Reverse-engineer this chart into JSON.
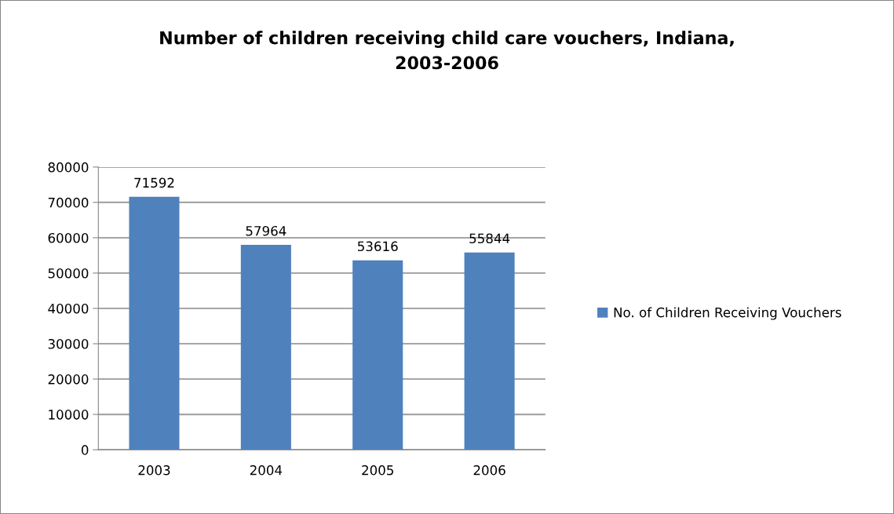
{
  "chart_data": {
    "type": "bar",
    "title": "Number of children receiving child care vouchers, Indiana,\n2003-2006",
    "categories": [
      "2003",
      "2004",
      "2005",
      "2006"
    ],
    "series": [
      {
        "name": "No. of Children Receiving Vouchers",
        "color": "#4f81bd",
        "values": [
          71592,
          57964,
          53616,
          55844
        ]
      }
    ],
    "ylim": [
      0,
      80000
    ],
    "yticks": [
      0,
      10000,
      20000,
      30000,
      40000,
      50000,
      60000,
      70000,
      80000
    ],
    "grid": "y",
    "legend": "right",
    "data_labels": true
  }
}
